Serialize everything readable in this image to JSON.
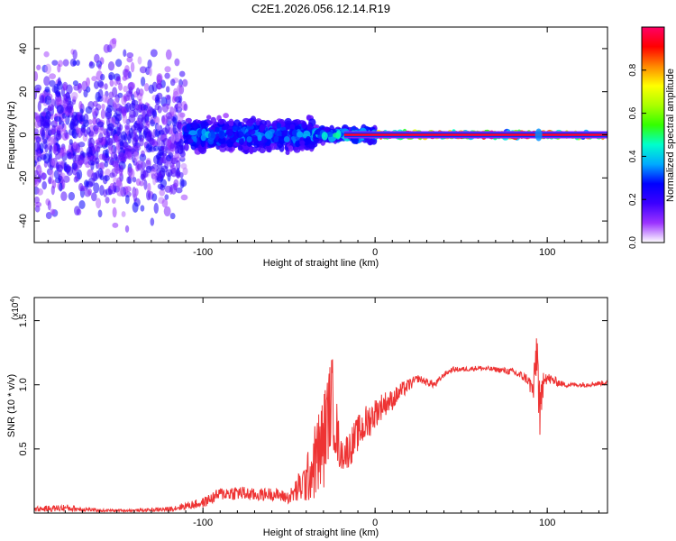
{
  "chart_data": [
    {
      "type": "heatmap",
      "title": "C2E1.2026.056.12.14.R19",
      "xlabel": "Height of straight line (km)",
      "ylabel": "Frequency (Hz)",
      "xlim": [
        -198,
        135
      ],
      "ylim": [
        -50,
        50
      ],
      "xticks": [
        -100,
        0,
        100
      ],
      "xtick_labels": [
        "-100",
        "0",
        "100"
      ],
      "yticks": [
        -40,
        -20,
        0,
        20,
        40
      ],
      "ytick_labels": [
        "-40",
        "-20",
        "0",
        "20",
        "40"
      ],
      "colorbar": {
        "label": "Normalized spectral amplitude",
        "range": [
          0,
          1
        ],
        "ticks": [
          0.0,
          0.2,
          0.4,
          0.6,
          0.8
        ],
        "tick_labels": [
          "0.0",
          "0.2",
          "0.4",
          "0.6",
          "0.8"
        ],
        "colors": [
          "#ffffff",
          "#9b33ff",
          "#3c00ff",
          "#0000ff",
          "#00aaff",
          "#00ffcc",
          "#33ff00",
          "#aaff00",
          "#ffff00",
          "#ff8800",
          "#ff0000",
          "#ff0066"
        ]
      },
      "description_regions": [
        {
          "x_range": [
            -198,
            -110
          ],
          "freq_spread": 50,
          "amplitude": 0.15
        },
        {
          "x_range": [
            -110,
            -35
          ],
          "freq_spread": 10,
          "amplitude": 0.35
        },
        {
          "x_range": [
            -35,
            0
          ],
          "freq_spread": 4,
          "amplitude": 0.45
        },
        {
          "x_range": [
            0,
            135
          ],
          "freq_spread": 1,
          "amplitude": 0.95
        }
      ]
    },
    {
      "type": "line",
      "xlabel": "Height of straight line (km)",
      "ylabel": "SNR (10 * v/v)",
      "y_multiplier_label": "(x10",
      "y_multiplier_exp": "4",
      "y_multiplier_close": ")",
      "xlim": [
        -198,
        135
      ],
      "ylim": [
        0,
        1.68
      ],
      "xticks": [
        -100,
        0,
        100
      ],
      "xtick_labels": [
        "-100",
        "0",
        "100"
      ],
      "yticks": [
        0.5,
        1.0,
        1.5
      ],
      "ytick_labels": [
        "0.5",
        "1.0",
        "1.5"
      ],
      "series": [
        {
          "name": "SNR",
          "color": "#ee3333",
          "x": [
            -198,
            -180,
            -160,
            -140,
            -120,
            -100,
            -90,
            -80,
            -70,
            -60,
            -50,
            -40,
            -35,
            -30,
            -28,
            -25,
            -22,
            -20,
            -15,
            -10,
            -5,
            0,
            5,
            10,
            15,
            20,
            25,
            30,
            35,
            40,
            45,
            50,
            60,
            70,
            80,
            88,
            92,
            94,
            96,
            98,
            100,
            110,
            120,
            130,
            135
          ],
          "values": [
            0.03,
            0.04,
            0.02,
            0.02,
            0.03,
            0.08,
            0.15,
            0.16,
            0.14,
            0.15,
            0.12,
            0.25,
            0.4,
            0.55,
            0.72,
            0.9,
            0.6,
            0.45,
            0.5,
            0.62,
            0.7,
            0.78,
            0.85,
            0.88,
            0.95,
            1.0,
            1.05,
            1.02,
            1.0,
            1.08,
            1.12,
            1.12,
            1.13,
            1.12,
            1.1,
            1.05,
            0.95,
            1.3,
            0.7,
            1.1,
            1.05,
            1.0,
            1.0,
            1.01,
            1.02
          ],
          "noise": [
            0.02,
            0.03,
            0.01,
            0.01,
            0.02,
            0.04,
            0.05,
            0.06,
            0.05,
            0.05,
            0.05,
            0.18,
            0.3,
            0.4,
            0.35,
            0.35,
            0.25,
            0.12,
            0.15,
            0.14,
            0.15,
            0.12,
            0.1,
            0.08,
            0.07,
            0.05,
            0.03,
            0.03,
            0.03,
            0.02,
            0.02,
            0.02,
            0.02,
            0.02,
            0.03,
            0.04,
            0.1,
            0.25,
            0.25,
            0.1,
            0.05,
            0.02,
            0.02,
            0.02,
            0.02
          ]
        }
      ]
    }
  ]
}
